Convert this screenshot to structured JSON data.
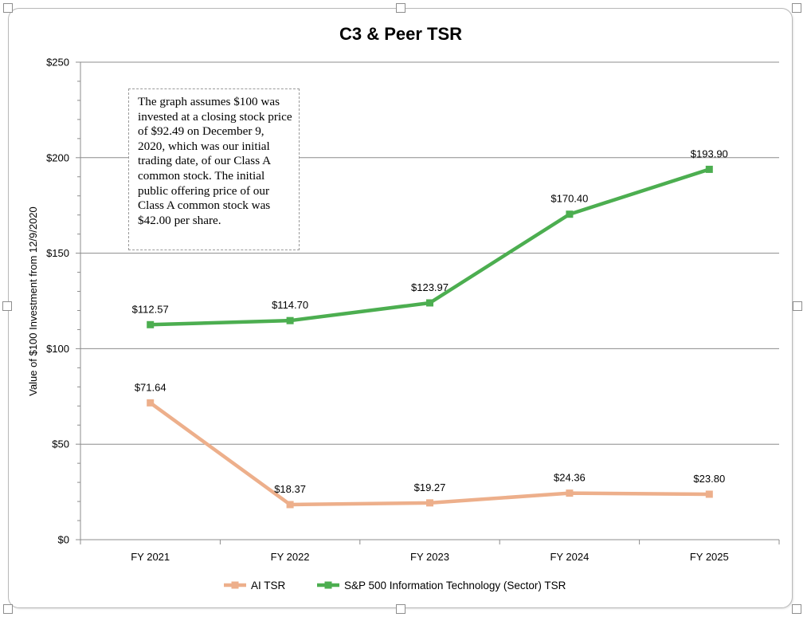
{
  "chart_data": {
    "type": "line",
    "title": "C3 & Peer TSR",
    "xlabel": "",
    "ylabel": "Value of $100 Investment from 12/9/2020",
    "categories": [
      "FY 2021",
      "FY 2022",
      "FY 2023",
      "FY 2024",
      "FY 2025"
    ],
    "ylim": [
      0,
      250
    ],
    "y_ticks": [
      "$0",
      "$50",
      "$100",
      "$150",
      "$200",
      "$250"
    ],
    "grid": "horizontal",
    "legend_position": "bottom",
    "series": [
      {
        "name": "AI TSR",
        "color": "#EDAF8B",
        "values": [
          71.64,
          18.37,
          19.27,
          24.36,
          23.8
        ],
        "labels": [
          "$71.64",
          "$18.37",
          "$19.27",
          "$24.36",
          "$23.80"
        ]
      },
      {
        "name": "S&P 500 Information Technology (Sector) TSR",
        "color": "#4CAE50",
        "values": [
          112.57,
          114.7,
          123.97,
          170.4,
          193.9
        ],
        "labels": [
          "$112.57",
          "$114.70",
          "$123.97",
          "$170.40",
          "$193.90"
        ]
      }
    ],
    "annotation": "The graph assumes $100 was invested at a closing stock price of $92.49 on December 9, 2020, which was our initial trading date, of our Class A common stock. The initial public offering price of our Class A common stock was $42.00 per share."
  }
}
